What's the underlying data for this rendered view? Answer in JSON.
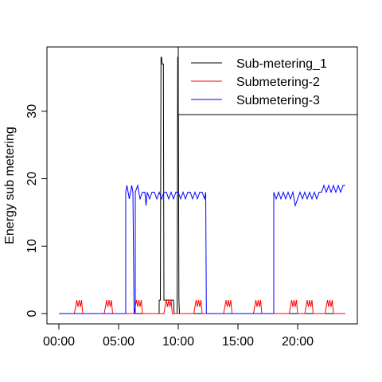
{
  "chart_data": {
    "type": "line",
    "xlabel": "",
    "ylabel": "Energy sub metering",
    "xlim": [
      0,
      24
    ],
    "ylim": [
      0,
      38
    ],
    "x_ticks": [
      {
        "value": 0,
        "label": "00:00"
      },
      {
        "value": 5,
        "label": "05:00"
      },
      {
        "value": 10,
        "label": "10:00"
      },
      {
        "value": 15,
        "label": "15:00"
      },
      {
        "value": 20,
        "label": "20:00"
      }
    ],
    "y_ticks": [
      0,
      10,
      20,
      30
    ],
    "grid": false,
    "legend": {
      "position": "top-right",
      "entries": [
        "Sub-metering_1",
        "Submetering-2",
        "Submetering-3"
      ]
    },
    "series": [
      {
        "name": "Sub-metering_1",
        "color": "#000000",
        "points": [
          [
            0,
            0
          ],
          [
            8.4,
            0
          ],
          [
            8.4,
            2
          ],
          [
            8.5,
            2
          ],
          [
            8.55,
            38
          ],
          [
            8.6,
            38
          ],
          [
            8.65,
            37
          ],
          [
            8.75,
            37
          ],
          [
            8.8,
            2
          ],
          [
            9.6,
            2
          ],
          [
            9.65,
            0
          ],
          [
            9.9,
            0
          ],
          [
            9.95,
            38
          ],
          [
            10.0,
            38
          ],
          [
            10.05,
            2
          ],
          [
            10.1,
            0
          ],
          [
            24,
            0
          ]
        ]
      },
      {
        "name": "Submetering-2",
        "color": "#ff0000",
        "points": [
          [
            0,
            0
          ],
          [
            1.3,
            0
          ],
          [
            1.4,
            1
          ],
          [
            1.5,
            2
          ],
          [
            1.6,
            1
          ],
          [
            1.7,
            2
          ],
          [
            1.8,
            1
          ],
          [
            1.9,
            2
          ],
          [
            2.0,
            0
          ],
          [
            3.8,
            0
          ],
          [
            3.9,
            1
          ],
          [
            4.0,
            2
          ],
          [
            4.1,
            1
          ],
          [
            4.2,
            2
          ],
          [
            4.3,
            1
          ],
          [
            4.4,
            2
          ],
          [
            4.5,
            0
          ],
          [
            6.3,
            0
          ],
          [
            6.4,
            1
          ],
          [
            6.5,
            2
          ],
          [
            6.6,
            1
          ],
          [
            6.7,
            2
          ],
          [
            6.8,
            1
          ],
          [
            6.9,
            2
          ],
          [
            7.0,
            0
          ],
          [
            8.8,
            0
          ],
          [
            8.9,
            1
          ],
          [
            9.0,
            2
          ],
          [
            9.1,
            1
          ],
          [
            9.2,
            2
          ],
          [
            9.3,
            1
          ],
          [
            9.4,
            2
          ],
          [
            9.5,
            0
          ],
          [
            11.3,
            0
          ],
          [
            11.4,
            1
          ],
          [
            11.5,
            2
          ],
          [
            11.6,
            1
          ],
          [
            11.7,
            2
          ],
          [
            11.8,
            1
          ],
          [
            11.9,
            2
          ],
          [
            12.0,
            0
          ],
          [
            13.8,
            0
          ],
          [
            13.9,
            1
          ],
          [
            14.0,
            2
          ],
          [
            14.1,
            1
          ],
          [
            14.2,
            2
          ],
          [
            14.3,
            1
          ],
          [
            14.4,
            2
          ],
          [
            14.5,
            0
          ],
          [
            16.3,
            0
          ],
          [
            16.4,
            1
          ],
          [
            16.5,
            2
          ],
          [
            16.6,
            1
          ],
          [
            16.7,
            2
          ],
          [
            16.8,
            1
          ],
          [
            16.9,
            2
          ],
          [
            17.0,
            0
          ],
          [
            19.3,
            0
          ],
          [
            19.4,
            1
          ],
          [
            19.5,
            2
          ],
          [
            19.6,
            1
          ],
          [
            19.7,
            2
          ],
          [
            19.8,
            1
          ],
          [
            19.9,
            2
          ],
          [
            20.0,
            0
          ],
          [
            20.6,
            0
          ],
          [
            20.7,
            1
          ],
          [
            20.8,
            2
          ],
          [
            20.9,
            1
          ],
          [
            21.0,
            2
          ],
          [
            21.1,
            1
          ],
          [
            21.2,
            2
          ],
          [
            21.3,
            0
          ],
          [
            22.3,
            0
          ],
          [
            22.4,
            1
          ],
          [
            22.5,
            2
          ],
          [
            22.6,
            1
          ],
          [
            22.7,
            2
          ],
          [
            22.8,
            1
          ],
          [
            22.9,
            2
          ],
          [
            23.0,
            0
          ],
          [
            24,
            0
          ]
        ]
      },
      {
        "name": "Submetering-3",
        "color": "#0000ff",
        "points": [
          [
            0,
            0
          ],
          [
            5.6,
            0
          ],
          [
            5.6,
            18
          ],
          [
            5.7,
            19
          ],
          [
            5.8,
            18
          ],
          [
            5.9,
            17
          ],
          [
            6.0,
            18
          ],
          [
            6.1,
            19
          ],
          [
            6.2,
            18
          ],
          [
            6.3,
            0
          ],
          [
            6.4,
            0
          ],
          [
            6.4,
            18
          ],
          [
            6.6,
            19
          ],
          [
            6.8,
            17
          ],
          [
            7.0,
            18
          ],
          [
            7.2,
            18
          ],
          [
            7.3,
            16
          ],
          [
            7.4,
            18
          ],
          [
            7.6,
            17
          ],
          [
            7.8,
            18
          ],
          [
            8.0,
            18
          ],
          [
            8.2,
            17
          ],
          [
            8.4,
            18
          ],
          [
            8.6,
            17
          ],
          [
            8.8,
            18
          ],
          [
            9.0,
            18
          ],
          [
            9.2,
            17
          ],
          [
            9.4,
            18
          ],
          [
            9.6,
            17
          ],
          [
            9.8,
            18
          ],
          [
            10.0,
            18
          ],
          [
            10.2,
            17
          ],
          [
            10.4,
            18
          ],
          [
            10.6,
            17
          ],
          [
            10.8,
            18
          ],
          [
            11.0,
            18
          ],
          [
            11.2,
            17
          ],
          [
            11.4,
            18
          ],
          [
            11.6,
            17
          ],
          [
            11.8,
            18
          ],
          [
            12.0,
            18
          ],
          [
            12.2,
            17
          ],
          [
            12.3,
            18
          ],
          [
            12.35,
            0
          ],
          [
            18.0,
            0
          ],
          [
            18.0,
            18
          ],
          [
            18.2,
            17
          ],
          [
            18.4,
            18
          ],
          [
            18.6,
            17
          ],
          [
            18.8,
            18
          ],
          [
            19.0,
            17
          ],
          [
            19.2,
            18
          ],
          [
            19.4,
            17
          ],
          [
            19.6,
            18
          ],
          [
            19.8,
            16
          ],
          [
            20.0,
            17
          ],
          [
            20.2,
            18
          ],
          [
            20.4,
            17
          ],
          [
            20.6,
            18
          ],
          [
            20.8,
            17
          ],
          [
            21.0,
            18
          ],
          [
            21.2,
            17
          ],
          [
            21.4,
            18
          ],
          [
            21.6,
            17
          ],
          [
            21.8,
            18
          ],
          [
            22.0,
            18
          ],
          [
            22.2,
            19
          ],
          [
            22.4,
            18
          ],
          [
            22.6,
            19
          ],
          [
            22.8,
            18
          ],
          [
            23.0,
            19
          ],
          [
            23.2,
            18
          ],
          [
            23.4,
            19
          ],
          [
            23.6,
            18
          ],
          [
            23.8,
            19
          ],
          [
            24,
            19
          ]
        ]
      }
    ]
  }
}
